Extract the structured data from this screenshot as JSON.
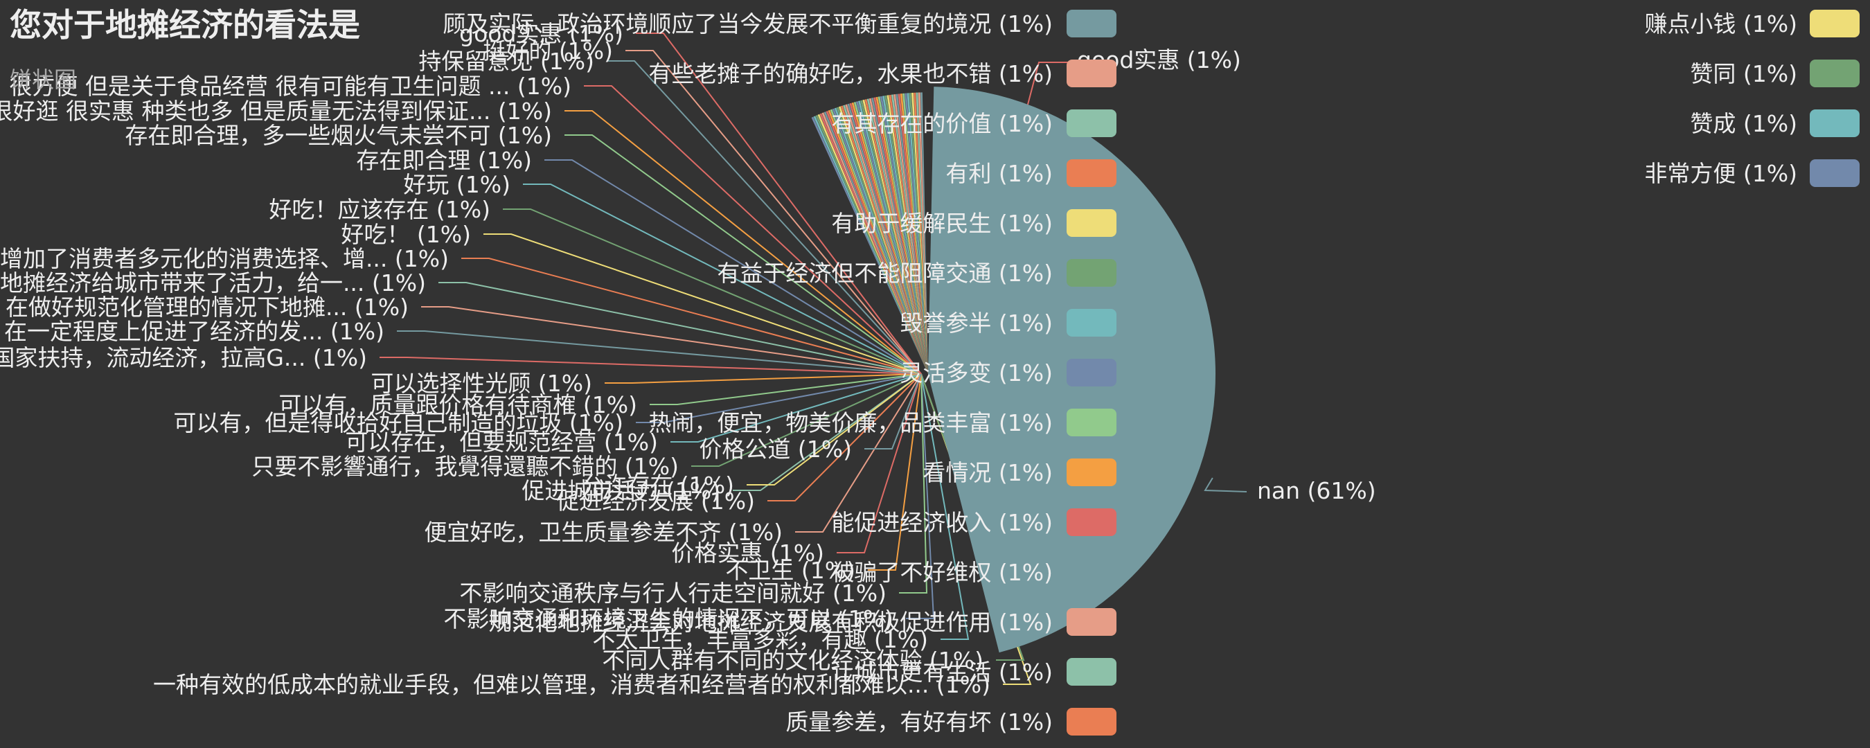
{
  "chart_data": {
    "type": "pie",
    "title": "您对于地摊经济的看法是",
    "subtitle": "饼状图",
    "legend_position": "middle-left / right",
    "slices": [
      {
        "label": "nan",
        "pct": 61,
        "color": "#759aa0"
      },
      {
        "label": "顾及实际、政治环境顺应了当今发展不平衡重复的境况",
        "pct": 1,
        "color": "#759aa0"
      },
      {
        "label": "有些老摊子的确好吃，水果也不错",
        "pct": 1,
        "color": "#e69d87"
      },
      {
        "label": "有其存在的价值",
        "pct": 1,
        "color": "#8dc1a9"
      },
      {
        "label": "有利",
        "pct": 1,
        "color": "#ea7e53"
      },
      {
        "label": "有助于缓解民生",
        "pct": 1,
        "color": "#eedd78"
      },
      {
        "label": "有益于经济但不能阻障交通",
        "pct": 1,
        "color": "#73a373"
      },
      {
        "label": "毁誉参半",
        "pct": 1,
        "color": "#73b9bc"
      },
      {
        "label": "灵活多变",
        "pct": 1,
        "color": "#7289ab"
      },
      {
        "label": "热闹，便宜，物美价廉，品类丰富",
        "pct": 1,
        "color": "#91ca8c"
      },
      {
        "label": "看情况",
        "pct": 1,
        "color": "#f49f42"
      },
      {
        "label": "能促进经济收入",
        "pct": 1,
        "color": "#dd6b66"
      },
      {
        "label": "被骗了不好维权",
        "pct": 1,
        "color": "#759aa0"
      },
      {
        "label": "规范化地摊经济会对地摊经济发展有积极促进作用",
        "pct": 1,
        "color": "#e69d87"
      },
      {
        "label": "让城市更有生活",
        "pct": 1,
        "color": "#8dc1a9"
      },
      {
        "label": "质量参差，有好有坏",
        "pct": 1,
        "color": "#ea7e53"
      },
      {
        "label": "一种有效的低成本的就业手段，但难以管理，消费者和经营者的权利都难以...",
        "pct": 1,
        "color": "#eedd78"
      },
      {
        "label": "不同人群有不同的文化经济体验",
        "pct": 1,
        "color": "#73a373"
      },
      {
        "label": "不太卫生，丰富多彩，有趣",
        "pct": 1,
        "color": "#73b9bc"
      },
      {
        "label": "不影响交通和环境卫生的情况下，可以",
        "pct": 1,
        "color": "#7289ab"
      },
      {
        "label": "不影响交通秩序与行人行走空间就好",
        "pct": 1,
        "color": "#91ca8c"
      },
      {
        "label": "不卫生",
        "pct": 1,
        "color": "#f49f42"
      },
      {
        "label": "价格实惠",
        "pct": 1,
        "color": "#dd6b66"
      },
      {
        "label": "价格公道",
        "pct": 1,
        "color": "#759aa0"
      },
      {
        "label": "便宜好吃，卫生质量参差不齐",
        "pct": 1,
        "color": "#e69d87"
      },
      {
        "label": "促进城市活力",
        "pct": 1,
        "color": "#8dc1a9"
      },
      {
        "label": "促进经济发展",
        "pct": 1,
        "color": "#ea7e53"
      },
      {
        "label": "允许存在",
        "pct": 1,
        "color": "#eedd78"
      },
      {
        "label": "只要不影響通行，我覺得還聽不錯的",
        "pct": 1,
        "color": "#73a373"
      },
      {
        "label": "可以存在，但要规范经营",
        "pct": 1,
        "color": "#73b9bc"
      },
      {
        "label": "可以有，但是得收拾好自己制造的垃圾",
        "pct": 1,
        "color": "#7289ab"
      },
      {
        "label": "可以有，质量跟价格有待商榷",
        "pct": 1,
        "color": "#91ca8c"
      },
      {
        "label": "可以选择性光顾",
        "pct": 1,
        "color": "#f49f42"
      },
      {
        "label": "国家扶持，流动经济，拉高G...",
        "pct": 1,
        "color": "#dd6b66"
      },
      {
        "label": "在一定程度上促进了经济的发...",
        "pct": 1,
        "color": "#759aa0"
      },
      {
        "label": "在做好规范化管理的情况下地摊...",
        "pct": 1,
        "color": "#e69d87"
      },
      {
        "label": "地摊经济给城市带来了活力，给一...",
        "pct": 1,
        "color": "#8dc1a9"
      },
      {
        "label": "增加了消费者多元化的消费选择、增...",
        "pct": 1,
        "color": "#ea7e53"
      },
      {
        "label": "好吃！",
        "pct": 1,
        "color": "#eedd78"
      },
      {
        "label": "好吃！应该存在",
        "pct": 1,
        "color": "#73a373"
      },
      {
        "label": "好玩",
        "pct": 1,
        "color": "#73b9bc"
      },
      {
        "label": "存在即合理",
        "pct": 1,
        "color": "#7289ab"
      },
      {
        "label": "存在即合理，多一些烟火气未尝不可",
        "pct": 1,
        "color": "#91ca8c"
      },
      {
        "label": "很好逛 很实惠 种类也多 但是质量无法得到保证...",
        "pct": 1,
        "color": "#f49f42"
      },
      {
        "label": "很方便 但是关于食品经营 很有可能有卫生问题 ...",
        "pct": 1,
        "color": "#dd6b66"
      },
      {
        "label": "持保留意见",
        "pct": 1,
        "color": "#759aa0"
      },
      {
        "label": "挺好的",
        "pct": 1,
        "color": "#e69d87"
      },
      {
        "label": "good实惠",
        "pct": 1,
        "color": "#dd6b66"
      },
      {
        "label": "赚点小钱",
        "pct": 1,
        "color": "#eedd78"
      },
      {
        "label": "赞同",
        "pct": 1,
        "color": "#73a373"
      },
      {
        "label": "赞成",
        "pct": 1,
        "color": "#73b9bc"
      },
      {
        "label": "非常方便",
        "pct": 1,
        "color": "#7289ab"
      }
    ],
    "legend": [
      {
        "label": "顾及实际、政治环境顺应了当今发展不平衡重复的境况",
        "pct": 1,
        "color": "#759aa0",
        "swatch": true
      },
      {
        "label": "有些老摊子的确好吃，水果也不错",
        "pct": 1,
        "color": "#e69d87",
        "swatch": true
      },
      {
        "label": "有其存在的价值",
        "pct": 1,
        "color": "#8dc1a9",
        "swatch": true
      },
      {
        "label": "有利",
        "pct": 1,
        "color": "#ea7e53",
        "swatch": true
      },
      {
        "label": "有助于缓解民生",
        "pct": 1,
        "color": "#eedd78",
        "swatch": true
      },
      {
        "label": "有益于经济但不能阻障交通",
        "pct": 1,
        "color": "#73a373",
        "swatch": true
      },
      {
        "label": "毁誉参半",
        "pct": 1,
        "color": "#73b9bc",
        "swatch": true
      },
      {
        "label": "灵活多变",
        "pct": 1,
        "color": "#7289ab",
        "swatch": true
      },
      {
        "label": "热闹，便宜，物美价廉，品类丰富",
        "pct": 1,
        "color": "#91ca8c",
        "swatch": true
      },
      {
        "label": "看情况",
        "pct": 1,
        "color": "#f49f42",
        "swatch": true
      },
      {
        "label": "能促进经济收入",
        "pct": 1,
        "color": "#dd6b66",
        "swatch": true
      },
      {
        "label": "被骗了不好维权",
        "pct": 1,
        "color": "#759aa0",
        "swatch": false
      },
      {
        "label": "规范化地摊经济会对地摊经济发展有积极促进作用",
        "pct": 1,
        "color": "#e69d87",
        "swatch": true
      },
      {
        "label": "让城市更有生活",
        "pct": 1,
        "color": "#8dc1a9",
        "swatch": true
      },
      {
        "label": "质量参差，有好有坏",
        "pct": 1,
        "color": "#ea7e53",
        "swatch": true
      }
    ],
    "legend_right": [
      {
        "label": "赚点小钱",
        "pct": 1,
        "color": "#eedd78"
      },
      {
        "label": "赞同",
        "pct": 1,
        "color": "#73a373"
      },
      {
        "label": "赞成",
        "pct": 1,
        "color": "#73b9bc"
      },
      {
        "label": "非常方便",
        "pct": 1,
        "color": "#7289ab"
      }
    ]
  }
}
